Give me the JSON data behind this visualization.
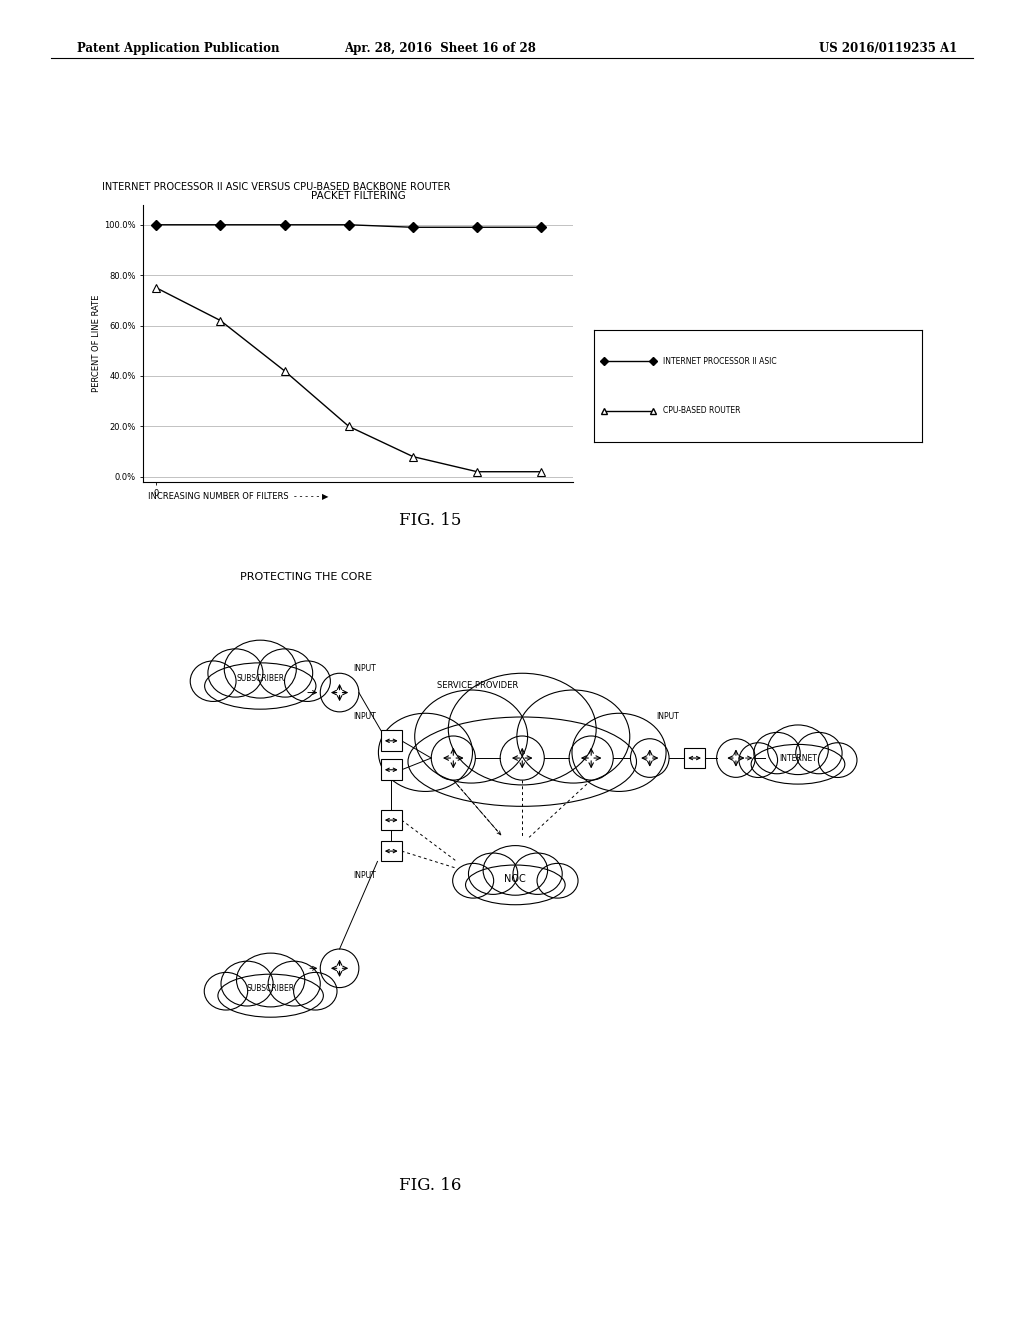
{
  "header_left": "Patent Application Publication",
  "header_mid": "Apr. 28, 2016  Sheet 16 of 28",
  "header_right": "US 2016/0119235 A1",
  "fig15_supertitle": "INTERNET PROCESSOR II ASIC VERSUS CPU-BASED BACKBONE ROUTER",
  "fig15_title": "PACKET FILTERING",
  "fig15_ylabel": "PERCENT OF LINE RATE",
  "fig15_xlabel": "INCREASING NUMBER OF FILTERS",
  "fig15_legend1": "INTERNET PROCESSOR II ASIC",
  "fig15_legend2": "CPU-BASED ROUTER",
  "asic_x": [
    0,
    1,
    2,
    3,
    4,
    5,
    6
  ],
  "asic_y": [
    100,
    100,
    100,
    100,
    99,
    99,
    99
  ],
  "cpu_x": [
    0,
    1,
    2,
    3,
    4,
    5,
    6
  ],
  "cpu_y": [
    75,
    62,
    42,
    20,
    8,
    2,
    2
  ],
  "fig15_label": "FIG. 15",
  "fig16_label": "FIG. 16",
  "fig16_title": "PROTECTING THE CORE",
  "background_color": "#ffffff",
  "line_color": "#000000"
}
